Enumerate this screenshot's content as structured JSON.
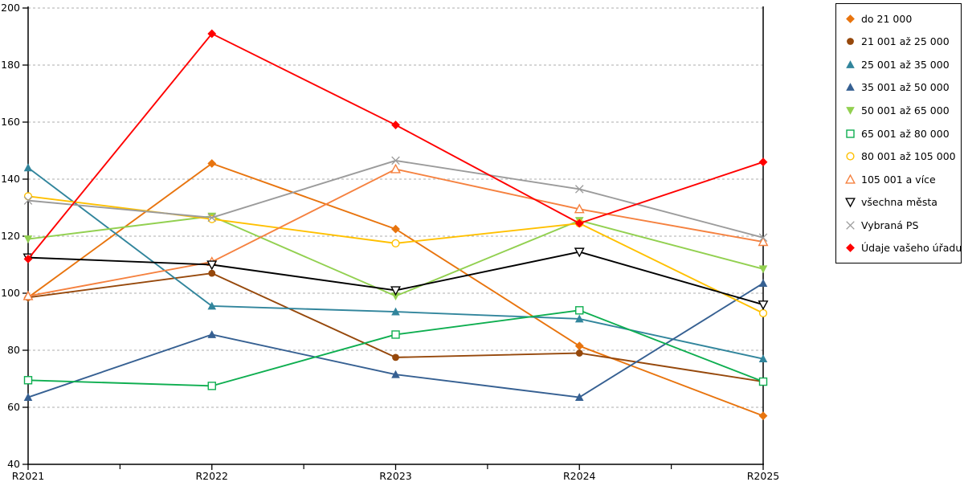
{
  "chart_data": {
    "type": "line",
    "title": "",
    "categories": [
      "R2021",
      "R2022",
      "R2023",
      "R2024",
      "R2025"
    ],
    "xlabel": "",
    "ylabel": "",
    "y_axis": {
      "min": 40,
      "max": 200,
      "step": 20,
      "tick_labels": [
        "40",
        "60",
        "80",
        "100",
        "120",
        "140",
        "160",
        "180",
        "200"
      ]
    },
    "grid": "horizontal-dashed",
    "legend_position": "top-right",
    "series": [
      {
        "name": "do 21 000",
        "color": "#E8740E",
        "marker": "diamond-filled",
        "values": [
          98.5,
          145.5,
          122.5,
          81.5,
          57
        ]
      },
      {
        "name": "21 001 až 25 000",
        "color": "#96480B",
        "marker": "circle-filled",
        "values": [
          98.5,
          107,
          77.5,
          79,
          69
        ]
      },
      {
        "name": "25 001 až 35 000",
        "color": "#31859C",
        "marker": "triangle-up-filled",
        "values": [
          144,
          95.5,
          93.5,
          91,
          77
        ]
      },
      {
        "name": "35 001 až 50 000",
        "color": "#366092",
        "marker": "triangle-up-filled",
        "values": [
          63.5,
          85.5,
          71.5,
          63.5,
          103.5
        ]
      },
      {
        "name": "50 001 až 65 000",
        "color": "#92D050",
        "marker": "triangle-down-filled",
        "values": [
          119,
          127,
          99,
          125.5,
          108.5
        ]
      },
      {
        "name": "65 001 až 80 000",
        "color": "#0EAE50",
        "marker": "square-open",
        "values": [
          69.5,
          67.5,
          85.5,
          94,
          69
        ]
      },
      {
        "name": "80 001 až 105 000",
        "color": "#FFC000",
        "marker": "circle-open",
        "values": [
          134,
          126,
          117.5,
          124.5,
          93
        ]
      },
      {
        "name": "105 001 a více",
        "color": "#F5813F",
        "marker": "triangle-up-open",
        "values": [
          99,
          111,
          143.5,
          129.5,
          118
        ]
      },
      {
        "name": "všechna města",
        "color": "#000000",
        "marker": "triangle-down-open",
        "values": [
          112.5,
          110,
          101,
          114.5,
          96
        ]
      },
      {
        "name": "Vybraná PS",
        "color": "#9B9B9B",
        "marker": "x",
        "values": [
          132.5,
          126.5,
          146.5,
          136.5,
          119.5
        ]
      },
      {
        "name": "Údaje vašeho úřadu",
        "color": "#FF0000",
        "marker": "diamond-filled",
        "values": [
          112,
          191,
          159,
          124.5,
          146
        ]
      }
    ]
  },
  "colors": {
    "grid": "#ADADAD",
    "axis": "#000000",
    "tick_text": "#000000",
    "background": "#FFFFFF"
  }
}
